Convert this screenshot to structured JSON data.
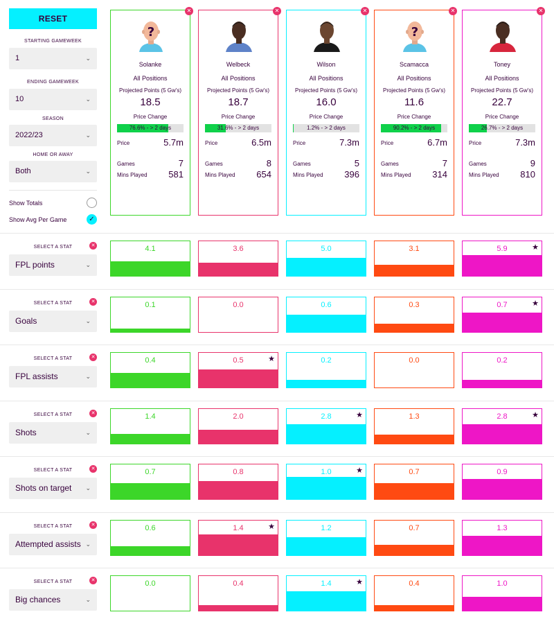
{
  "controls": {
    "reset_label": "RESET",
    "starting_gameweek_label": "STARTING GAMEWEEK",
    "starting_gameweek_value": "1",
    "ending_gameweek_label": "ENDING GAMEWEEK",
    "ending_gameweek_value": "10",
    "season_label": "SEASON",
    "season_value": "2022/23",
    "home_away_label": "HOME OR AWAY",
    "home_away_value": "Both",
    "show_totals_label": "Show Totals",
    "show_avg_label": "Show Avg Per Game",
    "show_avg_checked": true
  },
  "card_labels": {
    "projected": "Projected Points (5 Gw's)",
    "price_change": "Price Change",
    "price": "Price",
    "games": "Games",
    "mins": "Mins Played"
  },
  "players": [
    {
      "name": "Solanke",
      "position": "All Positions",
      "projected": "18.5",
      "price_change": "76.6% - > 2 days",
      "price_change_pct": 76.6,
      "price": "5.7m",
      "games": "7",
      "mins": "581",
      "color": "#3cd629",
      "avatar": "unknown-player-icon"
    },
    {
      "name": "Welbeck",
      "position": "All Positions",
      "projected": "18.7",
      "price_change": "31.6% - > 2 days",
      "price_change_pct": 31.6,
      "price": "6.5m",
      "games": "8",
      "mins": "654",
      "color": "#e8336b",
      "avatar": "player-photo-welbeck"
    },
    {
      "name": "Wilson",
      "position": "All Positions",
      "projected": "16.0",
      "price_change": "1.2% - > 2 days",
      "price_change_pct": 1.2,
      "price": "7.3m",
      "games": "5",
      "mins": "396",
      "color": "#05f0ff",
      "avatar": "player-photo-wilson"
    },
    {
      "name": "Scamacca",
      "position": "All Positions",
      "projected": "11.6",
      "price_change": "90.2% - > 2 days",
      "price_change_pct": 90.2,
      "price": "6.7m",
      "games": "7",
      "mins": "314",
      "color": "#ff4a12",
      "avatar": "unknown-player-icon"
    },
    {
      "name": "Toney",
      "position": "All Positions",
      "projected": "22.7",
      "price_change": "26.7% - > 2 days",
      "price_change_pct": 26.7,
      "price": "7.3m",
      "games": "9",
      "mins": "810",
      "color": "#ee16c6",
      "avatar": "player-photo-toney"
    }
  ],
  "stat_title": "SELECT A STAT",
  "stats": [
    {
      "name": "FPL points",
      "values": [
        "4.1",
        "3.6",
        "5.0",
        "3.1",
        "5.9"
      ],
      "fills": [
        0.42,
        0.37,
        0.51,
        0.32,
        0.6
      ],
      "best": [
        4
      ]
    },
    {
      "name": "Goals",
      "values": [
        "0.1",
        "0.0",
        "0.6",
        "0.3",
        "0.7"
      ],
      "fills": [
        0.1,
        0.0,
        0.49,
        0.24,
        0.57
      ],
      "best": [
        4
      ]
    },
    {
      "name": "FPL assists",
      "values": [
        "0.4",
        "0.5",
        "0.2",
        "0.0",
        "0.2"
      ],
      "fills": [
        0.42,
        0.51,
        0.22,
        0.0,
        0.22
      ],
      "best": [
        1
      ]
    },
    {
      "name": "Shots",
      "values": [
        "1.4",
        "2.0",
        "2.8",
        "1.3",
        "2.8"
      ],
      "fills": [
        0.28,
        0.4,
        0.56,
        0.26,
        0.56
      ],
      "best": [
        2,
        4
      ]
    },
    {
      "name": "Shots on target",
      "values": [
        "0.7",
        "0.8",
        "1.0",
        "0.7",
        "0.9"
      ],
      "fills": [
        0.45,
        0.51,
        0.64,
        0.45,
        0.58
      ],
      "best": [
        2
      ]
    },
    {
      "name": "Attempted assists",
      "values": [
        "0.6",
        "1.4",
        "1.2",
        "0.7",
        "1.3"
      ],
      "fills": [
        0.26,
        0.6,
        0.51,
        0.3,
        0.55
      ],
      "best": [
        1
      ]
    },
    {
      "name": "Big chances",
      "values": [
        "0.0",
        "0.4",
        "1.4",
        "0.4",
        "1.0"
      ],
      "fills": [
        0.0,
        0.15,
        0.55,
        0.15,
        0.4
      ],
      "best": [
        2
      ]
    }
  ]
}
